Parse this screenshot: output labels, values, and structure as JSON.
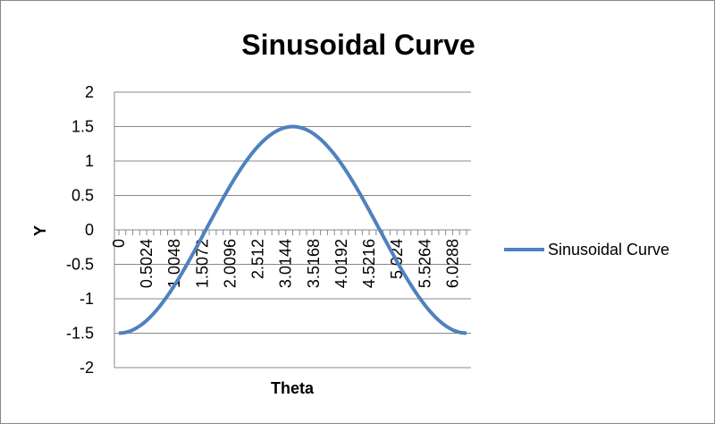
{
  "chart_data": {
    "type": "line",
    "title": "Sinusoidal Curve",
    "xlabel": "Theta",
    "ylabel": "Y",
    "ylim": [
      -2,
      2
    ],
    "y_ticks": [
      "2",
      "1.5",
      "1",
      "0.5",
      "0",
      "-0.5",
      "-1",
      "-1.5",
      "-2"
    ],
    "x_tick_labels": [
      "0",
      "0.5024",
      "1.0048",
      "1.5072",
      "2.0096",
      "2.512",
      "3.0144",
      "3.5168",
      "4.0192",
      "4.5216",
      "5.024",
      "5.5264",
      "6.0288"
    ],
    "x_step": 0.1256,
    "x_count": 51,
    "x_label_every": 4,
    "grid": "horizontal",
    "legend_position": "right",
    "series": [
      {
        "name": "Sinusoidal Curve",
        "color": "#4F81BD",
        "function": "-1.5*cos(theta)"
      }
    ]
  }
}
